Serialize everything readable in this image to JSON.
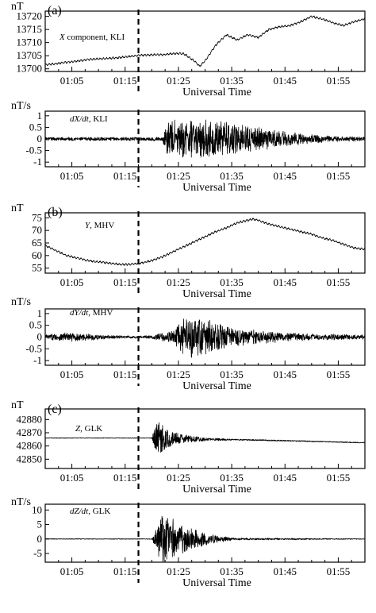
{
  "figure": {
    "event_line_time": "01:17:30"
  },
  "chart_data": [
    {
      "id": "a-x",
      "type": "line",
      "tag": "(a)",
      "yunit": "nT",
      "label_var": "X",
      "label_rest": " component, KLI",
      "xlabel": "Universal Time",
      "xticks": [
        "01:05",
        "01:15",
        "01:25",
        "01:35",
        "01:45",
        "01:55"
      ],
      "xlim": [
        "01:00",
        "02:00"
      ],
      "yticks": [
        13700,
        13705,
        13710,
        13715,
        13720
      ],
      "ylim": [
        13699,
        13722
      ],
      "series": [
        {
          "x": [
            "01:00",
            "01:02",
            "01:04",
            "01:06",
            "01:08",
            "01:10",
            "01:12",
            "01:14",
            "01:16",
            "01:18",
            "01:20",
            "01:22",
            "01:24",
            "01:26",
            "01:28",
            "01:29",
            "01:30",
            "01:32",
            "01:34",
            "01:36",
            "01:38",
            "01:40",
            "01:42",
            "01:44",
            "01:46",
            "01:48",
            "01:50",
            "01:52",
            "01:54",
            "01:56",
            "01:58",
            "02:00"
          ],
          "values": [
            13701.5,
            13702,
            13702.5,
            13703,
            13703.5,
            13703.8,
            13704,
            13704.3,
            13704.8,
            13705.2,
            13705.3,
            13705.4,
            13705.8,
            13705.8,
            13703,
            13701,
            13703,
            13709,
            13713,
            13711,
            13713,
            13712,
            13715,
            13716,
            13716.5,
            13718,
            13720,
            13719,
            13717.5,
            13716.5,
            13718,
            13719
          ]
        }
      ]
    },
    {
      "id": "a-dx",
      "type": "line",
      "yunit": "nT/s",
      "label_var": "dX/dt",
      "label_rest": ", KLI",
      "xlabel": "Universal Time",
      "xticks": [
        "01:05",
        "01:15",
        "01:25",
        "01:35",
        "01:45",
        "01:55"
      ],
      "xlim": [
        "01:00",
        "02:00"
      ],
      "yticks": [
        -1.0,
        -0.5,
        0,
        0.5,
        1.0
      ],
      "ylim": [
        -1.2,
        1.2
      ],
      "activity_envelope": {
        "x": [
          "01:00",
          "01:22",
          "01:23",
          "01:26",
          "01:30",
          "01:34",
          "01:38",
          "01:42",
          "01:46",
          "01:50",
          "01:55",
          "02:00"
        ],
        "values": [
          0.08,
          0.08,
          0.85,
          0.85,
          0.85,
          0.75,
          0.6,
          0.45,
          0.3,
          0.2,
          0.12,
          0.1
        ]
      }
    },
    {
      "id": "b-y",
      "type": "line",
      "tag": "(b)",
      "yunit": "nT",
      "label_var": "Y",
      "label_rest": ", MHV",
      "xlabel": "Universal Time",
      "xticks": [
        "01:05",
        "01:15",
        "01:25",
        "01:35",
        "01:45",
        "01:55"
      ],
      "xlim": [
        "01:00",
        "02:00"
      ],
      "yticks": [
        55,
        60,
        65,
        70,
        75
      ],
      "ylim": [
        53,
        77
      ],
      "series": [
        {
          "x": [
            "01:00",
            "01:02",
            "01:04",
            "01:06",
            "01:08",
            "01:10",
            "01:12",
            "01:14",
            "01:16",
            "01:18",
            "01:20",
            "01:22",
            "01:24",
            "01:26",
            "01:28",
            "01:30",
            "01:32",
            "01:34",
            "01:36",
            "01:38",
            "01:39",
            "01:40",
            "01:42",
            "01:44",
            "01:46",
            "01:48",
            "01:50",
            "01:52",
            "01:54",
            "01:56",
            "01:58",
            "02:00"
          ],
          "values": [
            64,
            62,
            60,
            59,
            58,
            57.5,
            57,
            56.5,
            56.5,
            57,
            58,
            59.5,
            61.5,
            63.5,
            65.5,
            67.5,
            69.5,
            71,
            73,
            74,
            74.5,
            74,
            72.5,
            71.5,
            70.5,
            69.5,
            68.5,
            67,
            66,
            64.5,
            63,
            62.5
          ]
        }
      ]
    },
    {
      "id": "b-dy",
      "type": "line",
      "yunit": "nT/s",
      "label_var": "dY/dt",
      "label_rest": ", MHV",
      "xlabel": "Universal Time",
      "xticks": [
        "01:05",
        "01:15",
        "01:25",
        "01:35",
        "01:45",
        "01:55"
      ],
      "xlim": [
        "01:00",
        "02:00"
      ],
      "yticks": [
        -1.0,
        -0.5,
        0,
        0.5,
        1.0
      ],
      "ylim": [
        -1.2,
        1.2
      ],
      "activity_envelope": {
        "x": [
          "01:00",
          "01:04",
          "01:08",
          "01:12",
          "01:16",
          "01:20",
          "01:24",
          "01:26",
          "01:28",
          "01:30",
          "01:33",
          "01:36",
          "01:40",
          "01:45",
          "01:50",
          "02:00"
        ],
        "values": [
          0.12,
          0.2,
          0.15,
          0.08,
          0.06,
          0.08,
          0.3,
          0.8,
          0.95,
          0.8,
          0.6,
          0.4,
          0.3,
          0.2,
          0.15,
          0.1
        ]
      }
    },
    {
      "id": "c-z",
      "type": "line",
      "tag": "(c)",
      "yunit": "nT",
      "label_var": "Z",
      "label_rest": ", GLK",
      "xlabel": "Universal Time",
      "xticks": [
        "01:05",
        "01:15",
        "01:25",
        "01:35",
        "01:45",
        "01:55"
      ],
      "xlim": [
        "01:00",
        "02:00"
      ],
      "yticks": [
        42850,
        42860,
        42870,
        42880
      ],
      "ylim": [
        42843,
        42888
      ],
      "series": [
        {
          "x": [
            "01:00",
            "01:10",
            "01:20",
            "01:21",
            "01:25",
            "01:30",
            "01:35",
            "01:40",
            "01:45",
            "01:50",
            "01:55",
            "02:00"
          ],
          "values": [
            42866,
            42866,
            42866,
            42866,
            42865.5,
            42865,
            42864.8,
            42864.5,
            42864,
            42863.5,
            42863,
            42862.5
          ]
        }
      ],
      "activity_envelope": {
        "x": [
          "01:00",
          "01:20",
          "01:21",
          "01:22",
          "01:24",
          "01:27",
          "01:30",
          "01:35",
          "02:00"
        ],
        "values": [
          0.2,
          0.2,
          14,
          10,
          5,
          2.5,
          1.2,
          0.5,
          0.3
        ]
      }
    },
    {
      "id": "c-dz",
      "type": "line",
      "yunit": "nT/s",
      "label_var": "dZ/dt",
      "label_rest": ", GLK",
      "xlabel": "Universal Time",
      "xticks": [
        "01:05",
        "01:15",
        "01:25",
        "01:35",
        "01:45",
        "01:55"
      ],
      "xlim": [
        "01:00",
        "02:00"
      ],
      "yticks": [
        -5,
        0,
        5,
        10
      ],
      "ylim": [
        -8,
        12
      ],
      "activity_envelope": {
        "x": [
          "01:00",
          "01:20",
          "01:21",
          "01:22",
          "01:23",
          "01:25",
          "01:27",
          "01:30",
          "01:33",
          "01:36",
          "02:00"
        ],
        "values": [
          0.12,
          0.12,
          5,
          9,
          8,
          6,
          4,
          2.2,
          1,
          0.4,
          0.12
        ]
      }
    }
  ]
}
